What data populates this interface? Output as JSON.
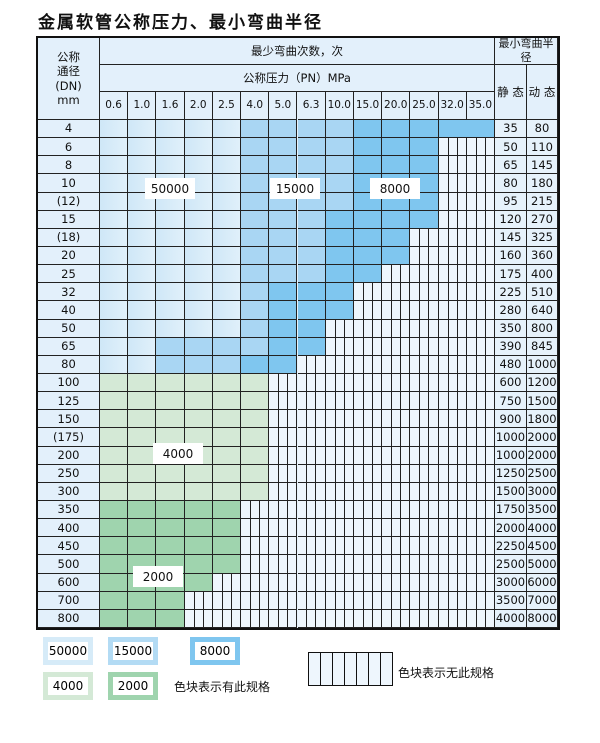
{
  "title": "金属软管公称压力、最小弯曲半径",
  "header": {
    "dn_label": [
      "公称",
      "通径",
      "(DN)",
      "mm"
    ],
    "cycles_label": "最少弯曲次数，次",
    "pressure_label": "公称压力（PN）MPa",
    "radius_label": "最小弯曲半径",
    "static_label": "静 态",
    "dynamic_label": "动 态",
    "pressures": [
      "0.6",
      "1.0",
      "1.6",
      "2.0",
      "2.5",
      "4.0",
      "5.0",
      "6.3",
      "10.0",
      "15.0",
      "20.0",
      "25.0",
      "32.0",
      "35.0"
    ]
  },
  "cell_legend": {
    "L": "50000",
    "M": "15000",
    "D": "8000",
    "G": "4000",
    "H": "2000",
    "X": "无此规格"
  },
  "rows": [
    {
      "dn": "4",
      "static": "35",
      "dynamic": "80",
      "cells": "LLLLLMMMMDDDDD"
    },
    {
      "dn": "6",
      "static": "50",
      "dynamic": "110",
      "cells": "LLLLLMMMMDDDXX"
    },
    {
      "dn": "8",
      "static": "65",
      "dynamic": "145",
      "cells": "LLLLLMMMMDDDXX"
    },
    {
      "dn": "10",
      "static": "80",
      "dynamic": "180",
      "cells": "LLLLLMMMMDDDXX"
    },
    {
      "dn": "(12)",
      "static": "95",
      "dynamic": "215",
      "cells": "LLLLLMMMMDDDXX"
    },
    {
      "dn": "15",
      "static": "120",
      "dynamic": "270",
      "cells": "LLLLLMMMDDDDXX"
    },
    {
      "dn": "(18)",
      "static": "145",
      "dynamic": "325",
      "cells": "LLLLLMMMDDDXXX"
    },
    {
      "dn": "20",
      "static": "160",
      "dynamic": "360",
      "cells": "LLLLLMMMDDDXXX"
    },
    {
      "dn": "25",
      "static": "175",
      "dynamic": "400",
      "cells": "LLLLLMMMDDXXXX"
    },
    {
      "dn": "32",
      "static": "225",
      "dynamic": "510",
      "cells": "LLLLLMDDDXXXXX"
    },
    {
      "dn": "40",
      "static": "280",
      "dynamic": "640",
      "cells": "LLLLLMDDDXXXXX"
    },
    {
      "dn": "50",
      "static": "350",
      "dynamic": "800",
      "cells": "LLLLLMDDXXXXXX"
    },
    {
      "dn": "65",
      "static": "390",
      "dynamic": "845",
      "cells": "LLMMMMDDXXXXXX"
    },
    {
      "dn": "80",
      "static": "480",
      "dynamic": "1000",
      "cells": "LLMMMDDXXXXXXX"
    },
    {
      "dn": "100",
      "static": "600",
      "dynamic": "1200",
      "cells": "GGGGGGXXXXXXXX"
    },
    {
      "dn": "125",
      "static": "750",
      "dynamic": "1500",
      "cells": "GGGGGGXXXXXXXX"
    },
    {
      "dn": "150",
      "static": "900",
      "dynamic": "1800",
      "cells": "GGGGGGXXXXXXXX"
    },
    {
      "dn": "(175)",
      "static": "1000",
      "dynamic": "2000",
      "cells": "GGGGGGXXXXXXXX"
    },
    {
      "dn": "200",
      "static": "1000",
      "dynamic": "2000",
      "cells": "GGGGGGXXXXXXXX"
    },
    {
      "dn": "250",
      "static": "1250",
      "dynamic": "2500",
      "cells": "GGGGGGXXXXXXXX"
    },
    {
      "dn": "300",
      "static": "1500",
      "dynamic": "3000",
      "cells": "GGGGGGXXXXXXXX"
    },
    {
      "dn": "350",
      "static": "1750",
      "dynamic": "3500",
      "cells": "HHHHHXXXXXXXXX"
    },
    {
      "dn": "400",
      "static": "2000",
      "dynamic": "4000",
      "cells": "HHHHHXXXXXXXXX"
    },
    {
      "dn": "450",
      "static": "2250",
      "dynamic": "4500",
      "cells": "HHHHHXXXXXXXXX"
    },
    {
      "dn": "500",
      "static": "2500",
      "dynamic": "5000",
      "cells": "HHHHHXXXXXXXXX"
    },
    {
      "dn": "600",
      "static": "3000",
      "dynamic": "6000",
      "cells": "HHHHXXXXXXXXXX"
    },
    {
      "dn": "700",
      "static": "3500",
      "dynamic": "7000",
      "cells": "HHHXXXXXXXXXXX"
    },
    {
      "dn": "800",
      "static": "4000",
      "dynamic": "8000",
      "cells": "HHHXXXXXXXXXXX"
    }
  ],
  "region_labels": {
    "l": "50000",
    "m": "15000",
    "d": "8000",
    "g": "4000",
    "h": "2000"
  },
  "legend": {
    "items": [
      "50000",
      "15000",
      "8000",
      "4000",
      "2000"
    ],
    "has_spec_text": "色块表示有此规格",
    "no_spec_text": "色块表示无此规格"
  },
  "colors": {
    "L": "#d6ebf8",
    "M": "#a9d6f3",
    "D": "#7fc6ef",
    "G": "#d4e9d6",
    "H": "#9fd4ae",
    "X": "#eef6fd"
  }
}
